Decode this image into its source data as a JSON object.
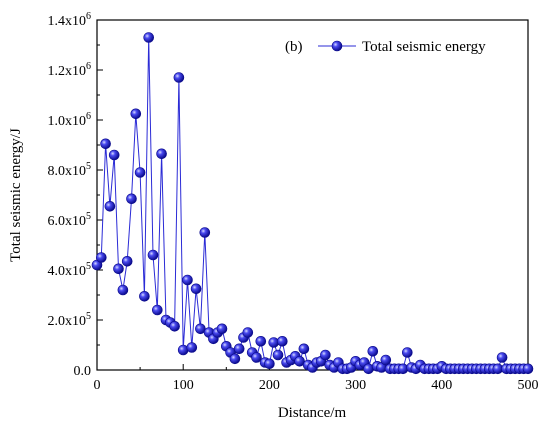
{
  "chart_data": {
    "type": "line",
    "panel_label": "(b)",
    "xlabel": "Distance/m",
    "ylabel": "Total seismic energy/J",
    "xlim": [
      0,
      500
    ],
    "ylim": [
      0,
      1400000
    ],
    "xticks": [
      0,
      100,
      200,
      300,
      400,
      500
    ],
    "xtick_labels": [
      "0",
      "100",
      "200",
      "300",
      "400",
      "500"
    ],
    "yticks": [
      0,
      200000,
      400000,
      600000,
      800000,
      1000000,
      1200000,
      1400000
    ],
    "ytick_labels": [
      {
        "mant": "0.0",
        "exp": ""
      },
      {
        "mant": "2.0x10",
        "exp": "5"
      },
      {
        "mant": "4.0x10",
        "exp": "5"
      },
      {
        "mant": "6.0x10",
        "exp": "5"
      },
      {
        "mant": "8.0x10",
        "exp": "5"
      },
      {
        "mant": "1.0x10",
        "exp": "6"
      },
      {
        "mant": "1.2x10",
        "exp": "6"
      },
      {
        "mant": "1.4x10",
        "exp": "6"
      }
    ],
    "legend_position": "top-right",
    "color": "#2b2bd6",
    "series": [
      {
        "name": "Total seismic energy",
        "x": [
          0,
          5,
          10,
          15,
          20,
          25,
          30,
          35,
          40,
          45,
          50,
          55,
          60,
          65,
          70,
          75,
          80,
          85,
          90,
          95,
          100,
          105,
          110,
          115,
          120,
          125,
          130,
          135,
          140,
          145,
          150,
          155,
          160,
          165,
          170,
          175,
          180,
          185,
          190,
          195,
          200,
          205,
          210,
          215,
          220,
          225,
          230,
          235,
          240,
          245,
          250,
          255,
          260,
          265,
          270,
          275,
          280,
          285,
          290,
          295,
          300,
          305,
          310,
          315,
          320,
          325,
          330,
          335,
          340,
          345,
          350,
          355,
          360,
          365,
          370,
          375,
          380,
          385,
          390,
          395,
          400,
          405,
          410,
          415,
          420,
          425,
          430,
          435,
          440,
          445,
          450,
          455,
          460,
          465,
          470,
          475,
          480,
          485,
          490,
          495,
          500
        ],
        "y": [
          420000,
          450000,
          905000,
          655000,
          860000,
          405000,
          320000,
          435000,
          685000,
          1025000,
          790000,
          295000,
          1330000,
          460000,
          240000,
          865000,
          200000,
          190000,
          175000,
          1170000,
          80000,
          360000,
          90000,
          325000,
          165000,
          550000,
          150000,
          125000,
          150000,
          165000,
          95000,
          70000,
          45000,
          85000,
          130000,
          150000,
          70000,
          50000,
          115000,
          30000,
          25000,
          110000,
          60000,
          115000,
          30000,
          40000,
          55000,
          35000,
          85000,
          20000,
          10000,
          30000,
          35000,
          60000,
          20000,
          10000,
          30000,
          5000,
          5000,
          10000,
          35000,
          20000,
          30000,
          5000,
          75000,
          15000,
          10000,
          40000,
          5000,
          5000,
          5000,
          5000,
          70000,
          10000,
          5000,
          20000,
          5000,
          5000,
          5000,
          5000,
          15000,
          5000,
          5000,
          5000,
          5000,
          5000,
          5000,
          5000,
          5000,
          5000,
          5000,
          5000,
          5000,
          5000,
          50000,
          5000,
          5000,
          5000,
          5000,
          5000,
          5000
        ]
      }
    ]
  }
}
